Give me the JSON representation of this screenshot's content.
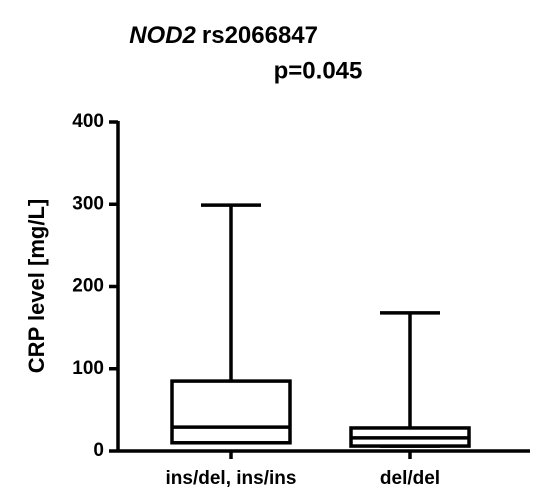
{
  "chart_data": {
    "type": "box",
    "title_italic": "NOD2",
    "title": "rs2066847",
    "subtitle": "p=0.045",
    "y_label": "CRP level [mg/L]",
    "categories": [
      "ins/del, ins/ins",
      "del/del"
    ],
    "boxes": [
      {
        "min": 10,
        "q1": 10,
        "median": 29,
        "q3": 85,
        "max": 299
      },
      {
        "min": 6,
        "q1": 6,
        "median": 16,
        "q3": 28,
        "max": 168
      }
    ],
    "ylim": [
      0,
      400
    ],
    "yticks": [
      0,
      100,
      200,
      300,
      400
    ],
    "color": "#000000"
  }
}
